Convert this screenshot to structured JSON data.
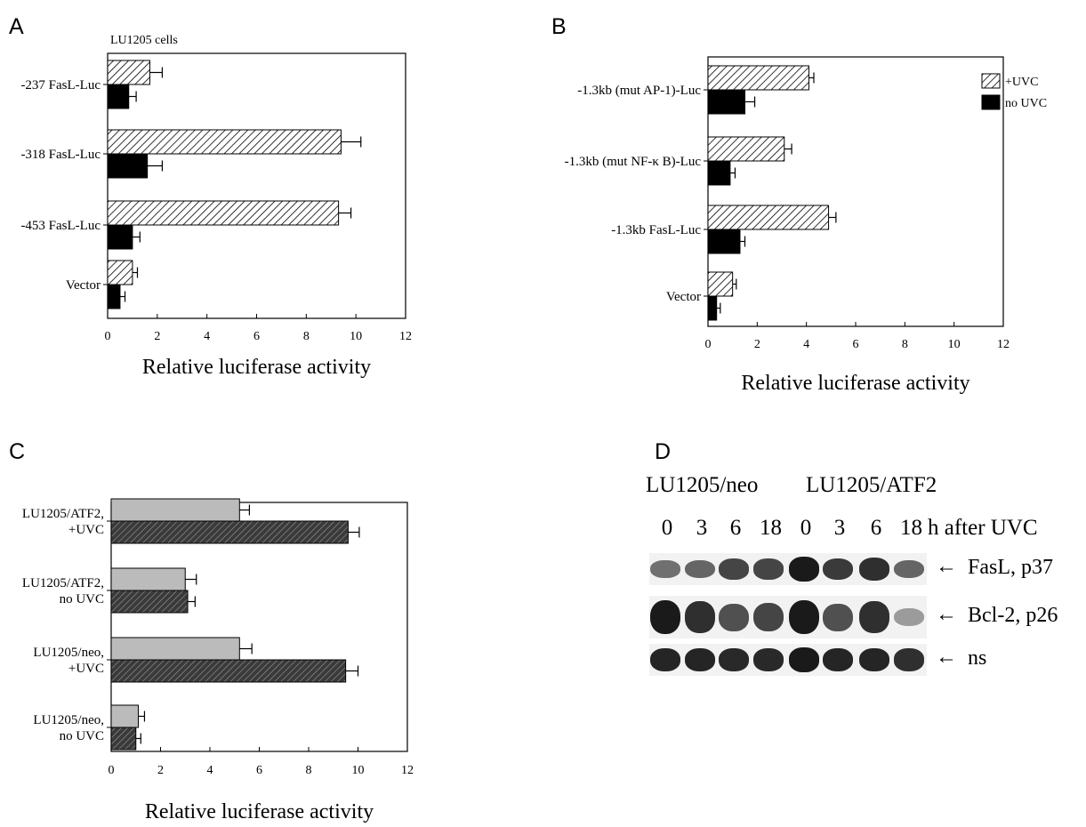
{
  "panels": {
    "a": "A",
    "b": "B",
    "c": "C",
    "d": "D"
  },
  "colors": {
    "hatch": "#000000",
    "solid": "#000000",
    "gray": "#bbbbbb",
    "dark_hatch": "#555555"
  },
  "chart_data": [
    {
      "id": "A",
      "type": "bar",
      "orientation": "horizontal",
      "title": "LU1205 cells",
      "xlabel": "Relative luciferase activity",
      "ylabel": "",
      "xlim": [
        0,
        12
      ],
      "xticks": [
        "0",
        "2",
        "4",
        "6",
        "8",
        "10",
        "12"
      ],
      "categories": [
        "-237 FasL-Luc",
        "-318 FasL-Luc",
        "-453 FasL-Luc",
        "Vector"
      ],
      "series": [
        {
          "style": "hatch",
          "values": [
            1.7,
            9.4,
            9.3,
            1.0
          ],
          "errors": [
            0.5,
            0.8,
            0.5,
            0.2
          ]
        },
        {
          "style": "solid",
          "values": [
            0.85,
            1.6,
            1.0,
            0.5
          ],
          "errors": [
            0.3,
            0.6,
            0.3,
            0.2
          ]
        }
      ]
    },
    {
      "id": "B",
      "type": "bar",
      "orientation": "horizontal",
      "title": "",
      "xlabel": "Relative luciferase activity",
      "ylabel": "",
      "xlim": [
        0,
        12
      ],
      "xticks": [
        "0",
        "2",
        "4",
        "6",
        "8",
        "10",
        "12"
      ],
      "categories": [
        "-1.3kb (mut AP-1)-Luc",
        "-1.3kb (mut NF-κ B)-Luc",
        "-1.3kb FasL-Luc",
        "Vector"
      ],
      "legend_position": "top-right",
      "series": [
        {
          "name": "+UVC",
          "style": "hatch",
          "values": [
            4.1,
            3.1,
            4.9,
            1.0
          ],
          "errors": [
            0.2,
            0.3,
            0.3,
            0.15
          ]
        },
        {
          "name": "no UVC",
          "style": "solid",
          "values": [
            1.5,
            0.9,
            1.3,
            0.35
          ],
          "errors": [
            0.4,
            0.2,
            0.2,
            0.15
          ]
        }
      ]
    },
    {
      "id": "C",
      "type": "bar",
      "orientation": "horizontal",
      "title": "",
      "xlabel": "Relative luciferase activity",
      "ylabel": "",
      "xlim": [
        0,
        12
      ],
      "xticks": [
        "0",
        "2",
        "4",
        "6",
        "8",
        "10",
        "12"
      ],
      "categories": [
        "LU1205/ATF2,\n+UVC",
        "LU1205/ATF2,\nno UVC",
        "LU1205/neo,\n+UVC",
        "LU1205/neo,\nno UVC"
      ],
      "series": [
        {
          "style": "gray",
          "values": [
            5.2,
            3.0,
            5.2,
            1.1
          ],
          "errors": [
            0.4,
            0.45,
            0.5,
            0.25
          ]
        },
        {
          "style": "dark_hatch",
          "values": [
            9.6,
            3.1,
            9.5,
            1.0
          ],
          "errors": [
            0.45,
            0.3,
            0.5,
            0.2
          ]
        }
      ]
    }
  ],
  "blot": {
    "groups": [
      "LU1205/neo",
      "LU1205/ATF2"
    ],
    "lanes": [
      "0",
      "3",
      "6",
      "18",
      "0",
      "3",
      "6",
      "18"
    ],
    "time_label": "h after UVC",
    "rows": [
      {
        "label": "FasL, p37",
        "intensities": [
          0.55,
          0.6,
          0.75,
          0.75,
          0.95,
          0.8,
          0.85,
          0.6
        ]
      },
      {
        "label": "Bcl-2, p26",
        "intensities": [
          0.95,
          0.85,
          0.7,
          0.75,
          0.95,
          0.7,
          0.85,
          0.35
        ]
      },
      {
        "label": "ns",
        "intensities": [
          0.9,
          0.9,
          0.88,
          0.88,
          0.95,
          0.9,
          0.9,
          0.85
        ]
      }
    ]
  }
}
